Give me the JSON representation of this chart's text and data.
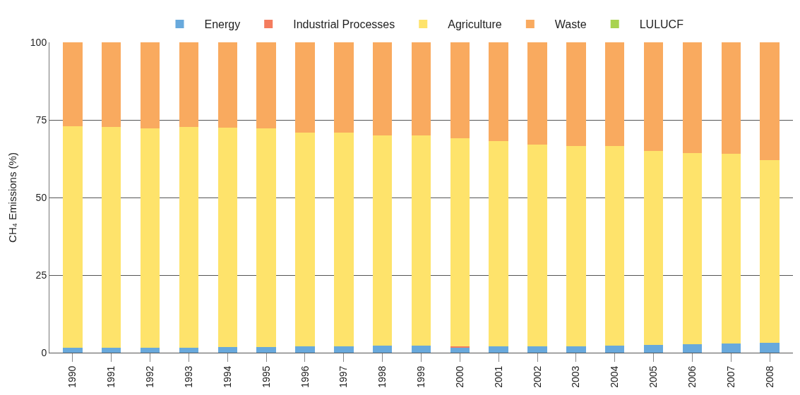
{
  "chart_data": {
    "type": "bar",
    "stacked": true,
    "ylabel": "CH₄ Emissions (%)",
    "categories": [
      "1990",
      "1991",
      "1992",
      "1993",
      "1994",
      "1995",
      "1996",
      "1997",
      "1998",
      "1999",
      "2000",
      "2001",
      "2002",
      "2003",
      "2004",
      "2005",
      "2006",
      "2007",
      "2008"
    ],
    "series": [
      {
        "name": "Energy",
        "color": "#68a9dc",
        "values": [
          1.7,
          1.7,
          1.7,
          1.7,
          1.8,
          1.8,
          2.0,
          2.0,
          2.2,
          2.2,
          1.8,
          2.0,
          2.0,
          2.0,
          2.2,
          2.5,
          2.8,
          3.0,
          3.1
        ]
      },
      {
        "name": "Industrial Processes",
        "color": "#f47c5e",
        "values": [
          0,
          0,
          0,
          0,
          0,
          0,
          0,
          0,
          0,
          0,
          0.3,
          0,
          0,
          0,
          0,
          0,
          0,
          0,
          0
        ]
      },
      {
        "name": "Agriculture",
        "color": "#fee36b",
        "values": [
          71.3,
          71.1,
          70.5,
          71.0,
          70.7,
          70.4,
          69.0,
          69.0,
          67.8,
          67.8,
          66.9,
          66.2,
          65.0,
          64.7,
          64.3,
          62.5,
          61.5,
          61.0,
          58.9
        ]
      },
      {
        "name": "Waste",
        "color": "#f9aa5f",
        "values": [
          27,
          27.2,
          27.8,
          27.3,
          27.5,
          27.8,
          29,
          29,
          30,
          30,
          31,
          31.8,
          33,
          33.3,
          33.5,
          35,
          35.7,
          36,
          38
        ]
      },
      {
        "name": "LULUCF",
        "color": "#a8d34f",
        "values": [
          0,
          0,
          0,
          0,
          0,
          0,
          0,
          0,
          0,
          0,
          0,
          0,
          0,
          0,
          0,
          0,
          0,
          0,
          0
        ]
      }
    ],
    "ylim": [
      0,
      100
    ],
    "yticks": [
      0,
      25,
      50,
      75,
      100
    ],
    "grid": "y",
    "legend": "top"
  }
}
